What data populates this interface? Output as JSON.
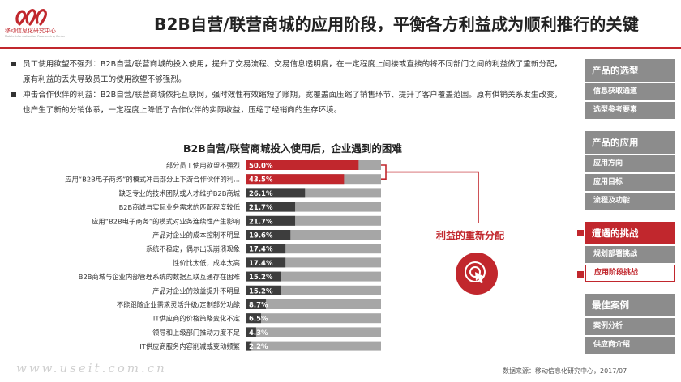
{
  "header": {
    "brand_cn": "移动信息化研究中心",
    "brand_en": "Mobile Informatization Researching Center",
    "title": "B2B自营/联营商城的应用阶段，平衡各方利益成为顺利推行的关键"
  },
  "bullets": [
    "员工使用欲望不强烈：B2B自营/联营商城的投入使用，提升了交易流程、交易信息透明度，在一定程度上间接或直接的将不同部门之间的利益做了重新分配，原有利益的丢失导致员工的使用欲望不够强烈。",
    "冲击合作伙伴的利益：B2B自营/联营商城依托互联网，强时效性有效缩短了账期，宽覆盖面压缩了销售环节、提升了客户覆盖范围。原有供销关系发生改变，也产生了新的分销体系，一定程度上降低了合作伙伴的实际收益，压缩了经销商的生存环境。"
  ],
  "chart_data": {
    "type": "bar",
    "orientation": "horizontal",
    "title": "B2B自营/联营商城投入使用后，企业遇到的困难",
    "categories": [
      "部分员工使用欲望不强烈",
      "应用“B2B电子商务”的模式冲击部分上下游合作伙伴的利...",
      "缺乏专业的技术团队或人才维护B2B商城",
      "B2B商城与实际业务需求的匹配程度较低",
      "应用“B2B电子商务”的模式对业务连续性产生影响",
      "产品对企业的成本控制不明显",
      "系统不稳定，偶尔出现崩溃现象",
      "性价比太低，成本太高",
      "B2B商城与企业内部管理系统的数据互联互通存在困难",
      "产品对企业的效益提升不明显",
      "不能跟随企业需求灵活升级/定制部分功能",
      "IT供应商的价格策略变化不定",
      "领导和上级部门推动力度不足",
      "IT供应商服务内容削减或变动频繁"
    ],
    "values": [
      50.0,
      43.5,
      26.1,
      21.7,
      21.7,
      19.6,
      17.4,
      17.4,
      15.2,
      15.2,
      8.7,
      6.5,
      4.3,
      2.2
    ],
    "value_labels": [
      "50.0%",
      "43.5%",
      "26.1%",
      "21.7%",
      "21.7%",
      "19.6%",
      "17.4%",
      "17.4%",
      "15.2%",
      "15.2%",
      "8.7%",
      "6.5%",
      "4.3%",
      "2.2%"
    ],
    "highlighted": [
      0,
      1
    ],
    "xlim": [
      0,
      60
    ],
    "grid": false,
    "colors": {
      "highlight": "#c1272d",
      "normal": "#3d3d3d",
      "track": "#a6a6a6",
      "annotation": "#c1272d"
    },
    "annotation": "利益的重新分配"
  },
  "annotation_icon": "cursor-click-icon",
  "source": "数据来源：移动信息化研究中心，2017/07",
  "watermark": "www.useit.com.cn",
  "sidebar": {
    "sections": [
      {
        "head": "产品的选型",
        "active": false,
        "items": [
          {
            "label": "信息获取通道",
            "active": false
          },
          {
            "label": "选型参考要素",
            "active": false
          }
        ]
      },
      {
        "head": "产品的应用",
        "active": false,
        "items": [
          {
            "label": "应用方向",
            "active": false
          },
          {
            "label": "应用目标",
            "active": false
          },
          {
            "label": "流程及功能",
            "active": false
          }
        ]
      },
      {
        "head": "遭遇的挑战",
        "active": true,
        "items": [
          {
            "label": "规划部署挑战",
            "active": false
          },
          {
            "label": "应用阶段挑战",
            "active": true
          }
        ]
      },
      {
        "head": "最佳案例",
        "active": false,
        "items": [
          {
            "label": "案例分析",
            "active": false
          },
          {
            "label": "供应商介绍",
            "active": false
          }
        ]
      }
    ]
  }
}
